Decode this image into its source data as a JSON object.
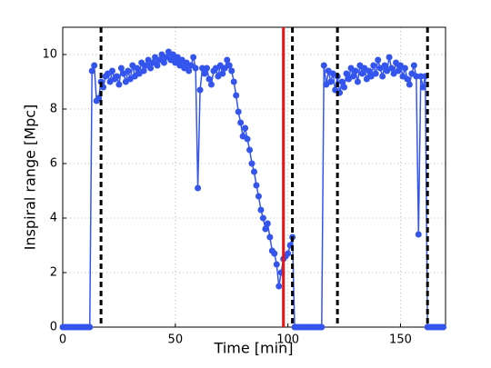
{
  "chart_data": {
    "type": "line",
    "xlabel": "Time [min]",
    "ylabel": "Inspiral range [Mpc]",
    "xlim": [
      0,
      170
    ],
    "xticks": [
      0,
      50,
      100,
      150
    ],
    "ylim": [
      0,
      11
    ],
    "yticks": [
      0,
      2,
      4,
      6,
      8,
      10
    ],
    "grid": true,
    "x": [
      0,
      1,
      2,
      3,
      4,
      5,
      6,
      7,
      8,
      9,
      10,
      11,
      12,
      13,
      14,
      15,
      16,
      17,
      18,
      19,
      20,
      21,
      22,
      23,
      24,
      25,
      26,
      27,
      28,
      29,
      30,
      31,
      32,
      33,
      34,
      35,
      36,
      37,
      38,
      39,
      40,
      41,
      42,
      43,
      44,
      45,
      46,
      47,
      48,
      49,
      50,
      51,
      52,
      53,
      54,
      55,
      56,
      57,
      58,
      59,
      60,
      61,
      62,
      63,
      64,
      65,
      66,
      67,
      68,
      69,
      70,
      71,
      72,
      73,
      74,
      75,
      76,
      77,
      78,
      79,
      80,
      81,
      82,
      83,
      84,
      85,
      86,
      87,
      88,
      89,
      90,
      91,
      92,
      93,
      94,
      95,
      96,
      97,
      98,
      99,
      100,
      101,
      102,
      103,
      104,
      105,
      106,
      107,
      108,
      109,
      110,
      111,
      112,
      113,
      114,
      115,
      116,
      117,
      118,
      119,
      120,
      121,
      122,
      123,
      124,
      125,
      126,
      127,
      128,
      129,
      130,
      131,
      132,
      133,
      134,
      135,
      136,
      137,
      138,
      139,
      140,
      141,
      142,
      143,
      144,
      145,
      146,
      147,
      148,
      149,
      150,
      151,
      152,
      153,
      154,
      155,
      156,
      157,
      158,
      159,
      160,
      161,
      162,
      163,
      164,
      165,
      166,
      167,
      168,
      169
    ],
    "series": [
      {
        "color": "#3355ee",
        "values": [
          0,
          0,
          0,
          0,
          0,
          0,
          0,
          0,
          0,
          0,
          0,
          0,
          0,
          9.4,
          9.6,
          8.3,
          8.4,
          9.0,
          8.8,
          9.2,
          9.3,
          9.0,
          9.4,
          9.1,
          9.2,
          8.9,
          9.5,
          9.3,
          9.0,
          9.4,
          9.1,
          9.6,
          9.2,
          9.5,
          9.3,
          9.7,
          9.4,
          9.6,
          9.8,
          9.5,
          9.7,
          9.9,
          9.6,
          9.8,
          10.0,
          9.7,
          9.9,
          10.1,
          9.8,
          10.0,
          9.7,
          9.9,
          9.6,
          9.8,
          9.5,
          9.7,
          9.4,
          9.6,
          9.9,
          9.5,
          5.1,
          8.7,
          9.5,
          9.3,
          9.5,
          9.1,
          8.9,
          9.4,
          9.5,
          9.2,
          9.6,
          9.3,
          9.5,
          9.8,
          9.6,
          9.4,
          9.0,
          8.5,
          7.9,
          7.5,
          7.0,
          7.3,
          6.9,
          6.5,
          6.0,
          5.7,
          5.2,
          4.8,
          4.3,
          4.0,
          3.6,
          3.8,
          3.3,
          2.8,
          2.7,
          2.3,
          1.5,
          2.0,
          2.5,
          2.6,
          2.7,
          3.0,
          3.3,
          0,
          0,
          0,
          0,
          0,
          0,
          0,
          0,
          0,
          0,
          0,
          0,
          0,
          9.6,
          8.9,
          9.4,
          9.0,
          9.3,
          8.7,
          9.2,
          8.6,
          9.0,
          8.8,
          9.3,
          9.1,
          9.5,
          9.2,
          9.4,
          9.0,
          9.6,
          9.3,
          9.5,
          9.1,
          9.4,
          9.2,
          9.6,
          9.3,
          9.8,
          9.5,
          9.2,
          9.6,
          9.4,
          9.9,
          9.5,
          9.3,
          9.7,
          9.4,
          9.6,
          9.2,
          9.5,
          9.1,
          8.9,
          9.3,
          9.6,
          9.2,
          3.4,
          9.2,
          8.8,
          9.2,
          0,
          0,
          0,
          0,
          0,
          0,
          0,
          0
        ]
      }
    ],
    "vlines": [
      {
        "x": 17,
        "color": "#000000",
        "dashed": true
      },
      {
        "x": 102,
        "color": "#000000",
        "dashed": true
      },
      {
        "x": 122,
        "color": "#000000",
        "dashed": true
      },
      {
        "x": 162,
        "color": "#000000",
        "dashed": true
      },
      {
        "x": 98,
        "color": "#ee1111",
        "dashed": false
      }
    ]
  }
}
